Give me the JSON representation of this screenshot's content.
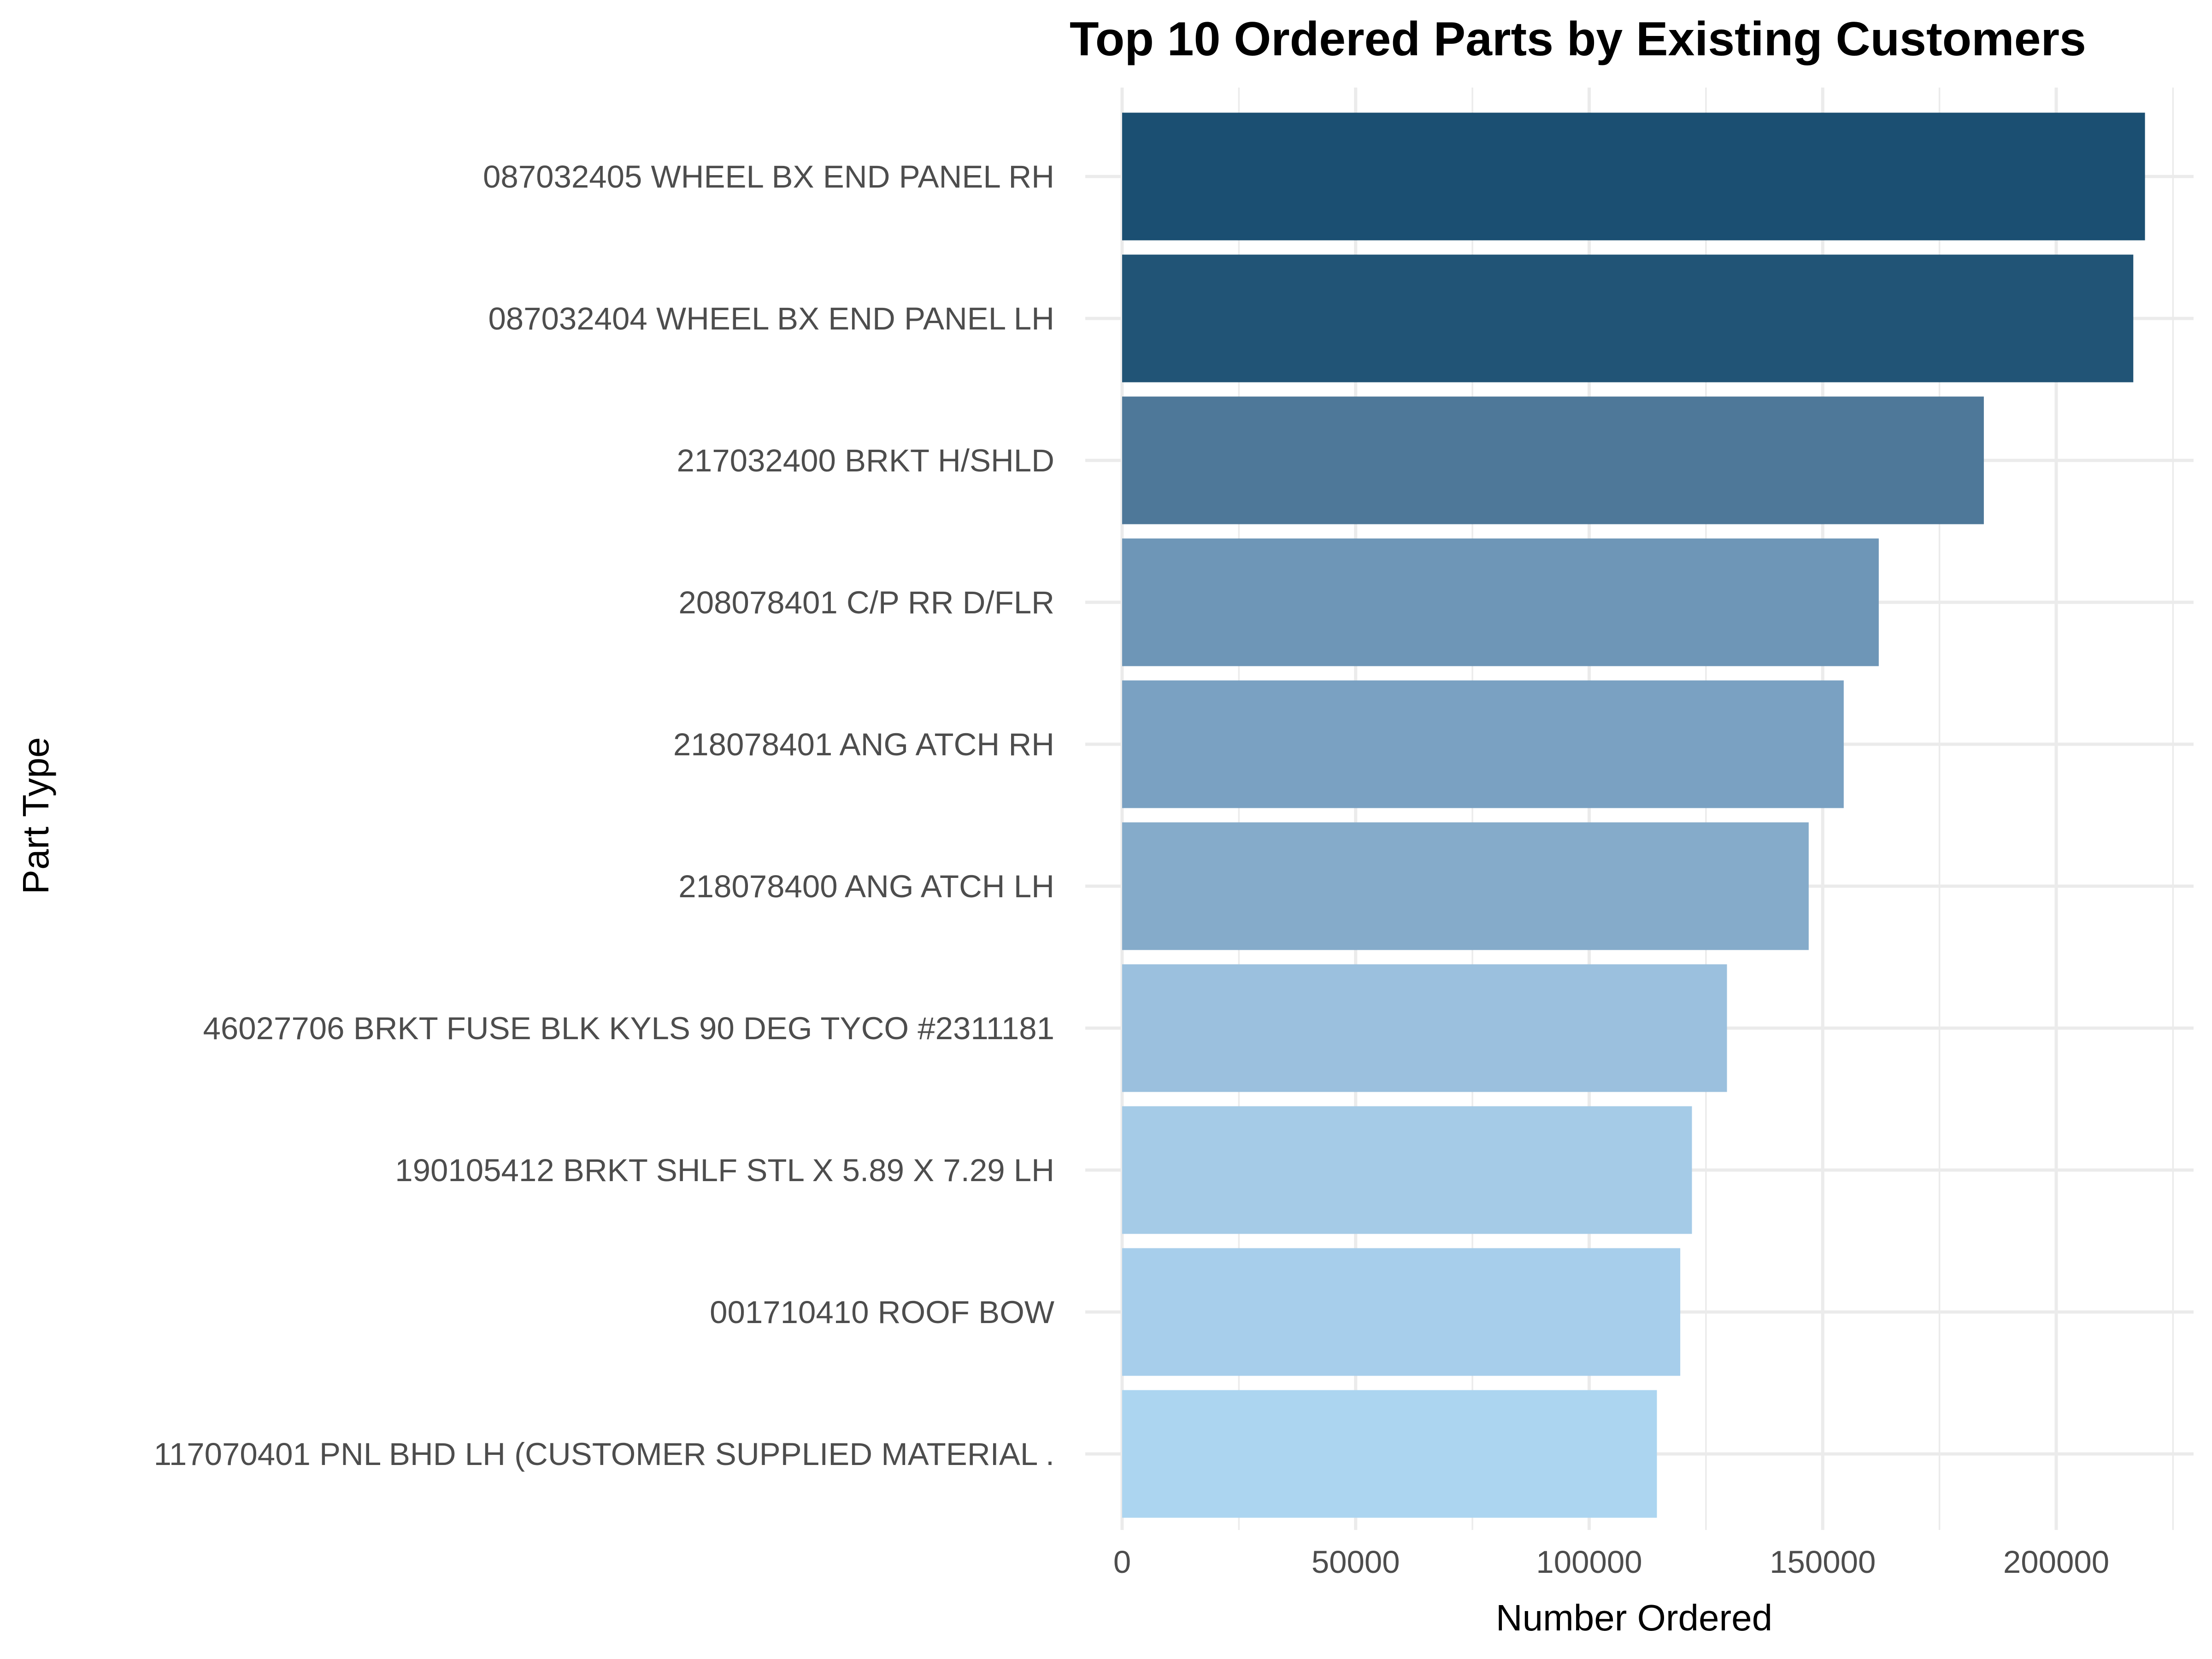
{
  "chart_data": {
    "type": "bar",
    "orientation": "horizontal",
    "title": "Top 10 Ordered Parts by Existing Customers",
    "xlabel": "Number Ordered",
    "ylabel": "Part Type",
    "xlim": [
      0,
      225000
    ],
    "x_ticks": [
      0,
      50000,
      100000,
      150000,
      200000
    ],
    "x_tick_labels": [
      "0",
      "50000",
      "100000",
      "150000",
      "200000"
    ],
    "grid": true,
    "legend": "none",
    "categories": [
      "087032405 WHEEL BX END PANEL RH",
      "087032404 WHEEL BX END PANEL LH",
      "217032400 BRKT H/SHLD",
      "208078401 C/P RR D/FLR",
      "218078401 ANG ATCH RH",
      "218078400 ANG ATCH LH",
      "46027706 BRKT FUSE BLK KYLS 90 DEG TYCO #2311181",
      "190105412 BRKT SHLF STL  X 5.89 X 7.29 LH",
      "001710410 ROOF BOW",
      "117070401 PNL BHD LH (CUSTOMER SUPPLIED MATERIAL ."
    ],
    "values": [
      219000,
      216500,
      184500,
      162000,
      154500,
      147000,
      129500,
      122000,
      119500,
      114500
    ],
    "colors": [
      "#1b4f72",
      "#215476",
      "#4e7899",
      "#6e96b7",
      "#7aa1c2",
      "#85abca",
      "#9bc0de",
      "#a5cbe7",
      "#a7ceeb",
      "#acd5f0"
    ]
  }
}
